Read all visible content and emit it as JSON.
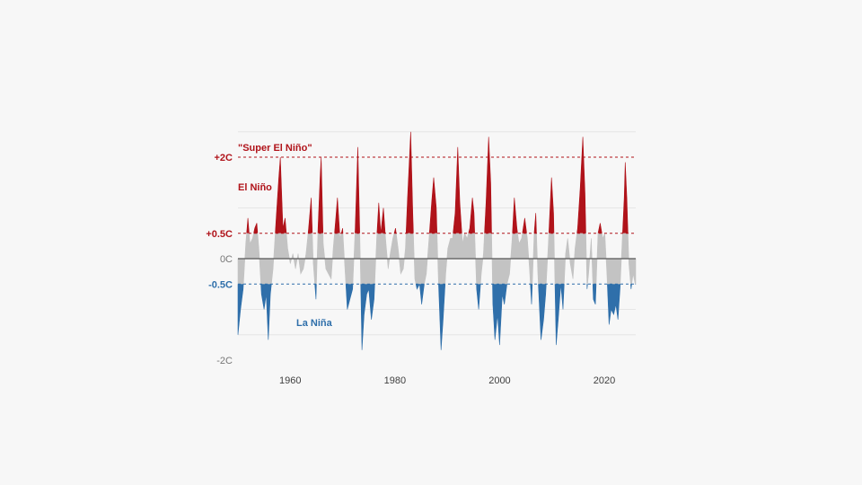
{
  "chart_data": {
    "type": "area",
    "title": "",
    "xlabel": "",
    "ylabel": "",
    "unit": "C",
    "xlim": [
      1950,
      2026
    ],
    "ylim": [
      -2.0,
      2.5
    ],
    "x_ticks": [
      {
        "value": 1960,
        "label": "1960"
      },
      {
        "value": 1980,
        "label": "1980"
      },
      {
        "value": 2000,
        "label": "2000"
      },
      {
        "value": 2020,
        "label": "2020"
      }
    ],
    "y_ticks": [
      {
        "value": 2.0,
        "label": "+2C",
        "style": "dashed-red",
        "color": "#b0131a"
      },
      {
        "value": 0.5,
        "label": "+0.5C",
        "style": "dashed-red",
        "color": "#b0131a"
      },
      {
        "value": 0.0,
        "label": "0C",
        "style": "solid-dark",
        "color": "#777777"
      },
      {
        "value": -0.5,
        "label": "-0.5C",
        "style": "dashed-blue",
        "color": "#2f6faa"
      },
      {
        "value": -2.0,
        "label": "-2C",
        "style": "none",
        "color": "#777777"
      }
    ],
    "annotations": [
      {
        "text": "\"Super El Niño\"",
        "color": "#b0131a"
      },
      {
        "text": "El Niño",
        "color": "#b0131a"
      },
      {
        "text": "La Niña",
        "color": "#2f6faa"
      }
    ],
    "colors": {
      "el_nino": "#b0131a",
      "neutral": "#c3c3c3",
      "la_nina": "#2f6faa",
      "gridline": "#e6e6e6"
    },
    "thresholds": {
      "el_nino": 0.5,
      "la_nina": -0.5
    },
    "grid": true,
    "series": [
      {
        "points": [
          [
            1950.0,
            -1.5
          ],
          [
            1950.5,
            -1.0
          ],
          [
            1951.0,
            -0.6
          ],
          [
            1951.5,
            0.3
          ],
          [
            1951.9,
            0.8
          ],
          [
            1952.3,
            0.3
          ],
          [
            1952.8,
            0.4
          ],
          [
            1953.2,
            0.6
          ],
          [
            1953.6,
            0.7
          ],
          [
            1954.0,
            0.2
          ],
          [
            1954.5,
            -0.7
          ],
          [
            1955.0,
            -1.0
          ],
          [
            1955.4,
            -0.7
          ],
          [
            1955.8,
            -1.6
          ],
          [
            1956.2,
            -0.7
          ],
          [
            1956.7,
            -0.2
          ],
          [
            1957.3,
            0.8
          ],
          [
            1957.8,
            1.6
          ],
          [
            1958.1,
            2.0
          ],
          [
            1958.6,
            0.6
          ],
          [
            1959.0,
            0.8
          ],
          [
            1959.5,
            0.2
          ],
          [
            1960.0,
            -0.1
          ],
          [
            1960.5,
            0.1
          ],
          [
            1961.0,
            -0.2
          ],
          [
            1961.5,
            0.1
          ],
          [
            1962.0,
            -0.3
          ],
          [
            1962.5,
            -0.2
          ],
          [
            1963.0,
            0.1
          ],
          [
            1963.5,
            0.6
          ],
          [
            1964.0,
            1.2
          ],
          [
            1964.4,
            -0.1
          ],
          [
            1964.9,
            -0.8
          ],
          [
            1965.3,
            0.6
          ],
          [
            1965.7,
            1.6
          ],
          [
            1965.9,
            2.0
          ],
          [
            1966.3,
            0.3
          ],
          [
            1966.8,
            -0.2
          ],
          [
            1967.3,
            -0.3
          ],
          [
            1967.8,
            -0.4
          ],
          [
            1968.2,
            0.2
          ],
          [
            1968.7,
            0.8
          ],
          [
            1969.0,
            1.2
          ],
          [
            1969.5,
            0.4
          ],
          [
            1970.0,
            0.6
          ],
          [
            1970.5,
            -0.3
          ],
          [
            1970.9,
            -1.0
          ],
          [
            1971.4,
            -0.8
          ],
          [
            1971.9,
            -0.6
          ],
          [
            1972.4,
            0.6
          ],
          [
            1972.9,
            2.2
          ],
          [
            1973.3,
            0.4
          ],
          [
            1973.7,
            -1.8
          ],
          [
            1974.1,
            -1.1
          ],
          [
            1974.6,
            -0.7
          ],
          [
            1975.0,
            -0.6
          ],
          [
            1975.5,
            -1.2
          ],
          [
            1976.0,
            -0.8
          ],
          [
            1976.5,
            0.4
          ],
          [
            1976.9,
            1.1
          ],
          [
            1977.3,
            0.5
          ],
          [
            1977.8,
            1.0
          ],
          [
            1978.2,
            0.4
          ],
          [
            1978.7,
            -0.2
          ],
          [
            1979.1,
            0.1
          ],
          [
            1979.6,
            0.4
          ],
          [
            1980.1,
            0.6
          ],
          [
            1980.6,
            0.2
          ],
          [
            1981.1,
            -0.3
          ],
          [
            1981.6,
            -0.2
          ],
          [
            1982.0,
            0.2
          ],
          [
            1982.4,
            1.2
          ],
          [
            1983.0,
            2.5
          ],
          [
            1983.4,
            0.9
          ],
          [
            1983.8,
            -0.4
          ],
          [
            1984.2,
            -0.6
          ],
          [
            1984.7,
            -0.5
          ],
          [
            1985.1,
            -0.9
          ],
          [
            1985.6,
            -0.5
          ],
          [
            1986.0,
            -0.3
          ],
          [
            1986.5,
            0.4
          ],
          [
            1987.0,
            1.1
          ],
          [
            1987.4,
            1.6
          ],
          [
            1987.9,
            1.0
          ],
          [
            1988.3,
            -0.4
          ],
          [
            1988.8,
            -1.8
          ],
          [
            1989.2,
            -1.2
          ],
          [
            1989.7,
            -0.3
          ],
          [
            1990.1,
            0.2
          ],
          [
            1990.6,
            0.4
          ],
          [
            1991.0,
            0.4
          ],
          [
            1991.5,
            0.9
          ],
          [
            1992.0,
            2.2
          ],
          [
            1992.4,
            1.1
          ],
          [
            1992.9,
            0.3
          ],
          [
            1993.3,
            0.5
          ],
          [
            1993.8,
            0.4
          ],
          [
            1994.3,
            0.6
          ],
          [
            1994.8,
            1.2
          ],
          [
            1995.1,
            0.9
          ],
          [
            1995.6,
            -0.6
          ],
          [
            1996.0,
            -1.0
          ],
          [
            1996.5,
            -0.3
          ],
          [
            1996.9,
            0.1
          ],
          [
            1997.4,
            1.1
          ],
          [
            1997.9,
            2.4
          ],
          [
            1998.3,
            1.5
          ],
          [
            1998.7,
            -0.9
          ],
          [
            1999.1,
            -1.6
          ],
          [
            1999.6,
            -1.1
          ],
          [
            2000.0,
            -1.7
          ],
          [
            2000.5,
            -0.7
          ],
          [
            2000.9,
            -0.9
          ],
          [
            2001.4,
            -0.5
          ],
          [
            2001.9,
            -0.3
          ],
          [
            2002.4,
            0.4
          ],
          [
            2002.8,
            1.2
          ],
          [
            2003.3,
            0.6
          ],
          [
            2003.7,
            0.3
          ],
          [
            2004.2,
            0.4
          ],
          [
            2004.8,
            0.8
          ],
          [
            2005.3,
            0.4
          ],
          [
            2005.7,
            -0.2
          ],
          [
            2006.1,
            -0.9
          ],
          [
            2006.6,
            0.5
          ],
          [
            2006.9,
            0.9
          ],
          [
            2007.3,
            -0.3
          ],
          [
            2007.9,
            -1.6
          ],
          [
            2008.4,
            -1.2
          ],
          [
            2008.8,
            -0.7
          ],
          [
            2009.3,
            0.3
          ],
          [
            2009.9,
            1.6
          ],
          [
            2010.3,
            0.9
          ],
          [
            2010.8,
            -1.7
          ],
          [
            2011.2,
            -1.2
          ],
          [
            2011.7,
            -0.5
          ],
          [
            2012.1,
            -1.0
          ],
          [
            2012.6,
            0.1
          ],
          [
            2013.0,
            0.4
          ],
          [
            2013.5,
            -0.1
          ],
          [
            2014.0,
            -0.4
          ],
          [
            2014.4,
            0.2
          ],
          [
            2014.9,
            0.6
          ],
          [
            2015.4,
            1.4
          ],
          [
            2015.9,
            2.4
          ],
          [
            2016.3,
            1.3
          ],
          [
            2016.7,
            -0.6
          ],
          [
            2017.0,
            -0.3
          ],
          [
            2017.5,
            0.4
          ],
          [
            2017.9,
            -0.8
          ],
          [
            2018.3,
            -0.9
          ],
          [
            2018.8,
            0.5
          ],
          [
            2019.2,
            0.7
          ],
          [
            2019.7,
            0.4
          ],
          [
            2020.1,
            0.5
          ],
          [
            2020.5,
            -0.3
          ],
          [
            2020.9,
            -1.3
          ],
          [
            2021.3,
            -1.0
          ],
          [
            2021.8,
            -1.1
          ],
          [
            2022.2,
            -0.9
          ],
          [
            2022.6,
            -1.2
          ],
          [
            2023.0,
            -0.6
          ],
          [
            2023.4,
            0.3
          ],
          [
            2023.8,
            1.2
          ],
          [
            2024.0,
            1.9
          ],
          [
            2024.3,
            1.2
          ],
          [
            2024.7,
            -0.1
          ],
          [
            2025.1,
            -0.6
          ],
          [
            2025.5,
            -0.3
          ],
          [
            2025.9,
            -0.5
          ],
          [
            2026.0,
            -0.5
          ]
        ]
      }
    ]
  }
}
